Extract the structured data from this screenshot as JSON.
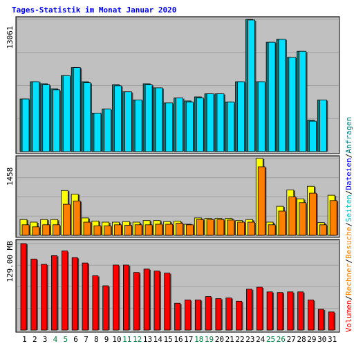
{
  "chart_data": {
    "type": "bar",
    "title": "Tages-Statistik im Monat Januar 2020",
    "categories": [
      "1",
      "2",
      "3",
      "4",
      "5",
      "6",
      "7",
      "8",
      "9",
      "10",
      "11",
      "12",
      "13",
      "14",
      "15",
      "16",
      "17",
      "18",
      "19",
      "20",
      "21",
      "22",
      "23",
      "24",
      "25",
      "26",
      "27",
      "28",
      "29",
      "30",
      "31"
    ],
    "weekend_days": [
      "4",
      "5",
      "11",
      "12",
      "18",
      "19",
      "25",
      "26"
    ],
    "colors": {
      "background": "#c0c0c0",
      "anfragen": "#008080",
      "dateien": "#00e0ff",
      "seiten": "#ffff00",
      "besuche": "#ff8000",
      "rechner": "#ff8000",
      "volumen": "#ff0000",
      "weekday_tick": "#000000",
      "weekend_tick": "#008040",
      "title": "#0000ff"
    },
    "side_legend": [
      {
        "text": "Volumen",
        "color": "#ff0000"
      },
      {
        "text": "/",
        "color": "#000000"
      },
      {
        "text": "Rechner",
        "color": "#ff8000"
      },
      {
        "text": "/",
        "color": "#000000"
      },
      {
        "text": "Besuche",
        "color": "#ff8000"
      },
      {
        "text": "/",
        "color": "#000000"
      },
      {
        "text": "Seiten",
        "color": "#00c0c0"
      },
      {
        "text": "/",
        "color": "#000000"
      },
      {
        "text": "Dateien",
        "color": "#0000ff"
      },
      {
        "text": "/",
        "color": "#000000"
      },
      {
        "text": "Anfragen",
        "color": "#008080"
      }
    ],
    "panels": [
      {
        "name": "hits",
        "ymax_label": "13061",
        "ymax": 13061,
        "series": [
          {
            "name": "Anfragen",
            "values": [
              5200,
              6900,
              6700,
              6200,
              7500,
              8300,
              6900,
              3800,
              4200,
              6600,
              5900,
              5100,
              6700,
              6300,
              4800,
              5300,
              5000,
              5400,
              5700,
              5700,
              4900,
              6900,
              13061,
              6900,
              10800,
              11100,
              9300,
              9900,
              3100,
              5100,
              0
            ]
          },
          {
            "name": "Dateien",
            "values": [
              5200,
              6900,
              6600,
              6100,
              7500,
              8300,
              6800,
              3800,
              4200,
              6500,
              5900,
              5100,
              6600,
              6300,
              4800,
              5300,
              4900,
              5300,
              5700,
              5700,
              4900,
              6900,
              13000,
              6900,
              10800,
              11100,
              9300,
              9900,
              3000,
              5100,
              0
            ]
          }
        ]
      },
      {
        "name": "pages",
        "ymax_label": "1458",
        "ymax": 1458,
        "series": [
          {
            "name": "Seiten",
            "values": [
              300,
              250,
              300,
              300,
              850,
              780,
              330,
              270,
              250,
              250,
              260,
              250,
              280,
              280,
              260,
              270,
              210,
              330,
              320,
              320,
              320,
              280,
              300,
              1458,
              250,
              550,
              860,
              690,
              930,
              240,
              760
            ]
          },
          {
            "name": "Besuche",
            "values": [
              200,
              160,
              200,
              200,
              590,
              650,
              250,
              180,
              180,
              200,
              190,
              200,
              200,
              210,
              210,
              230,
              200,
              300,
              300,
              300,
              290,
              250,
              250,
              1300,
              200,
              460,
              730,
              620,
              800,
              200,
              660
            ]
          }
        ]
      },
      {
        "name": "volume",
        "ymax_label": "129.00 MB",
        "ymax": 129.0,
        "series": [
          {
            "name": "Volumen",
            "values": [
              129,
              106,
              98,
              111,
              118,
              108,
              100,
              81,
              66,
              97,
              97,
              86,
              91,
              88,
              85,
              40,
              45,
              45,
              50,
              47,
              48,
              43,
              61,
              64,
              57,
              56,
              57,
              57,
              45,
              31,
              27
            ]
          }
        ]
      }
    ]
  }
}
